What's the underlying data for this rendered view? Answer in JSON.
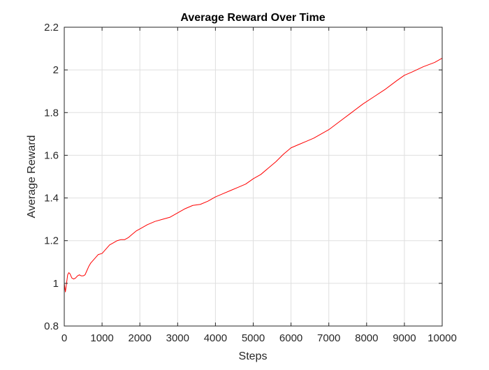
{
  "chart_data": {
    "type": "line",
    "title": "Average Reward Over Time",
    "xlabel": "Steps",
    "ylabel": "Average Reward",
    "xlim": [
      0,
      10000
    ],
    "ylim": [
      0.8,
      2.2
    ],
    "xticks": [
      0,
      1000,
      2000,
      3000,
      4000,
      5000,
      6000,
      7000,
      8000,
      9000,
      10000
    ],
    "yticks": [
      0.8,
      1,
      1.2,
      1.4,
      1.6,
      1.8,
      2,
      2.2
    ],
    "xtick_labels": [
      "0",
      "1000",
      "2000",
      "3000",
      "4000",
      "5000",
      "6000",
      "7000",
      "8000",
      "9000",
      "10000"
    ],
    "ytick_labels": [
      "0.8",
      "1",
      "1.2",
      "1.4",
      "1.6",
      "1.8",
      "2",
      "2.2"
    ],
    "grid": true,
    "line_color": "#ff0000",
    "series": [
      {
        "x": [
          0,
          30,
          60,
          90,
          120,
          150,
          200,
          250,
          300,
          350,
          400,
          450,
          500,
          550,
          600,
          650,
          700,
          800,
          900,
          1000,
          1100,
          1200,
          1300,
          1400,
          1500,
          1600,
          1700,
          1800,
          1900,
          2000,
          2200,
          2400,
          2600,
          2800,
          3000,
          3200,
          3400,
          3600,
          3800,
          4000,
          4200,
          4400,
          4600,
          4800,
          5000,
          5200,
          5400,
          5600,
          5800,
          6000,
          6200,
          6400,
          6600,
          6800,
          7000,
          7300,
          7600,
          7900,
          8200,
          8500,
          8800,
          9000,
          9200,
          9500,
          9800,
          10000
        ],
        "y": [
          1.0,
          0.96,
          1.0,
          1.04,
          1.05,
          1.045,
          1.025,
          1.02,
          1.025,
          1.035,
          1.04,
          1.035,
          1.035,
          1.04,
          1.06,
          1.08,
          1.095,
          1.115,
          1.135,
          1.14,
          1.16,
          1.18,
          1.19,
          1.2,
          1.205,
          1.205,
          1.215,
          1.23,
          1.245,
          1.255,
          1.275,
          1.29,
          1.3,
          1.31,
          1.33,
          1.35,
          1.365,
          1.37,
          1.385,
          1.405,
          1.42,
          1.435,
          1.45,
          1.465,
          1.49,
          1.51,
          1.54,
          1.57,
          1.605,
          1.635,
          1.65,
          1.665,
          1.68,
          1.7,
          1.72,
          1.76,
          1.8,
          1.84,
          1.875,
          1.91,
          1.95,
          1.975,
          1.99,
          2.015,
          2.035,
          2.055
        ]
      }
    ]
  }
}
